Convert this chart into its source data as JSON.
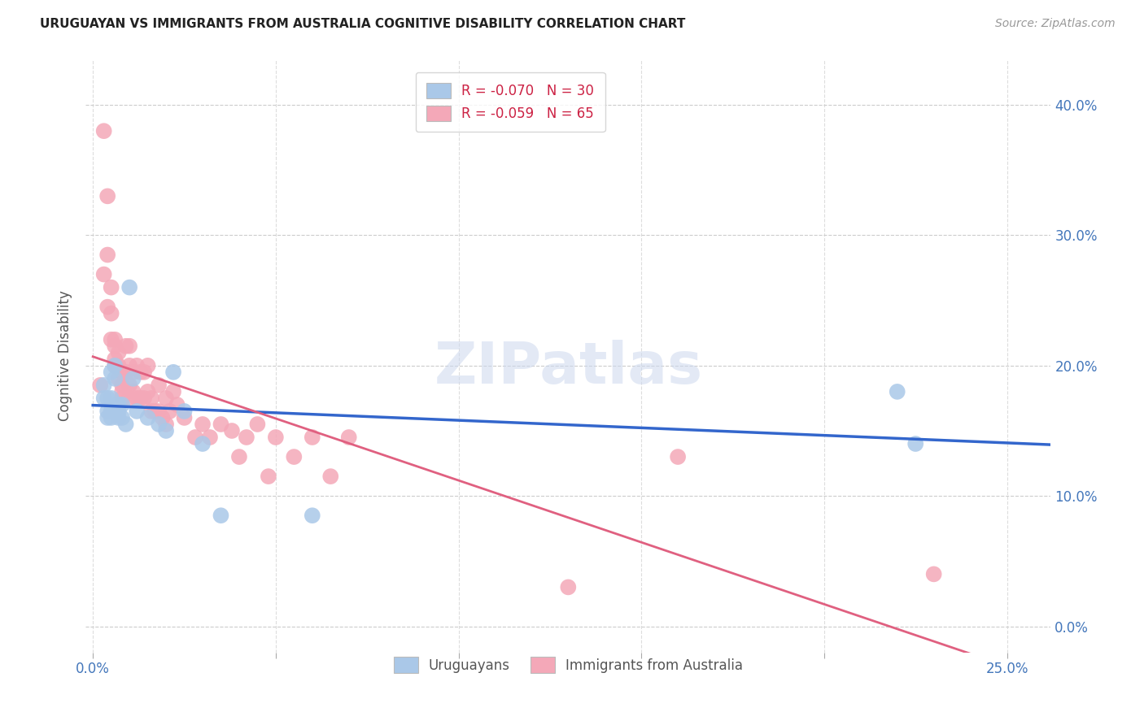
{
  "title": "URUGUAYAN VS IMMIGRANTS FROM AUSTRALIA COGNITIVE DISABILITY CORRELATION CHART",
  "source": "Source: ZipAtlas.com",
  "ylabel": "Cognitive Disability",
  "x_ticks_labeled": [
    0.0,
    0.25
  ],
  "x_ticks_all": [
    0.0,
    0.05,
    0.1,
    0.15,
    0.2,
    0.25
  ],
  "y_ticks": [
    0.0,
    0.1,
    0.2,
    0.3,
    0.4
  ],
  "xlim": [
    -0.002,
    0.262
  ],
  "ylim": [
    -0.02,
    0.435
  ],
  "legend1_label_r": "R = -0.070",
  "legend1_label_n": "N = 30",
  "legend2_label_r": "R = -0.059",
  "legend2_label_n": "N = 65",
  "legend1_color": "#aac8e8",
  "legend2_color": "#f4a8b8",
  "trendline1_color": "#3366cc",
  "trendline2_color": "#e06080",
  "r_text_color": "#cc2244",
  "n_text_color": "#2255cc",
  "tick_label_color": "#4477bb",
  "uruguayan_x": [
    0.003,
    0.003,
    0.004,
    0.004,
    0.004,
    0.005,
    0.005,
    0.005,
    0.005,
    0.006,
    0.006,
    0.007,
    0.007,
    0.007,
    0.008,
    0.008,
    0.009,
    0.01,
    0.011,
    0.012,
    0.015,
    0.018,
    0.02,
    0.022,
    0.025,
    0.03,
    0.035,
    0.06,
    0.22,
    0.225
  ],
  "uruguayan_y": [
    0.185,
    0.175,
    0.175,
    0.165,
    0.16,
    0.195,
    0.175,
    0.165,
    0.16,
    0.2,
    0.19,
    0.17,
    0.165,
    0.16,
    0.17,
    0.16,
    0.155,
    0.26,
    0.19,
    0.165,
    0.16,
    0.155,
    0.15,
    0.195,
    0.165,
    0.14,
    0.085,
    0.085,
    0.18,
    0.14
  ],
  "australia_x": [
    0.002,
    0.003,
    0.003,
    0.004,
    0.004,
    0.004,
    0.005,
    0.005,
    0.005,
    0.006,
    0.006,
    0.006,
    0.006,
    0.007,
    0.007,
    0.007,
    0.008,
    0.008,
    0.008,
    0.008,
    0.009,
    0.009,
    0.01,
    0.01,
    0.01,
    0.01,
    0.011,
    0.011,
    0.012,
    0.012,
    0.013,
    0.013,
    0.014,
    0.014,
    0.015,
    0.015,
    0.016,
    0.016,
    0.017,
    0.018,
    0.018,
    0.019,
    0.02,
    0.02,
    0.021,
    0.022,
    0.023,
    0.025,
    0.028,
    0.03,
    0.032,
    0.035,
    0.038,
    0.04,
    0.042,
    0.045,
    0.048,
    0.05,
    0.055,
    0.06,
    0.065,
    0.07,
    0.13,
    0.16,
    0.23
  ],
  "australia_y": [
    0.185,
    0.38,
    0.27,
    0.33,
    0.285,
    0.245,
    0.26,
    0.24,
    0.22,
    0.22,
    0.215,
    0.205,
    0.2,
    0.21,
    0.2,
    0.19,
    0.195,
    0.185,
    0.18,
    0.175,
    0.215,
    0.195,
    0.215,
    0.2,
    0.185,
    0.175,
    0.195,
    0.18,
    0.2,
    0.175,
    0.195,
    0.175,
    0.195,
    0.175,
    0.2,
    0.18,
    0.175,
    0.165,
    0.165,
    0.185,
    0.165,
    0.16,
    0.175,
    0.155,
    0.165,
    0.18,
    0.17,
    0.16,
    0.145,
    0.155,
    0.145,
    0.155,
    0.15,
    0.13,
    0.145,
    0.155,
    0.115,
    0.145,
    0.13,
    0.145,
    0.115,
    0.145,
    0.03,
    0.13,
    0.04
  ]
}
